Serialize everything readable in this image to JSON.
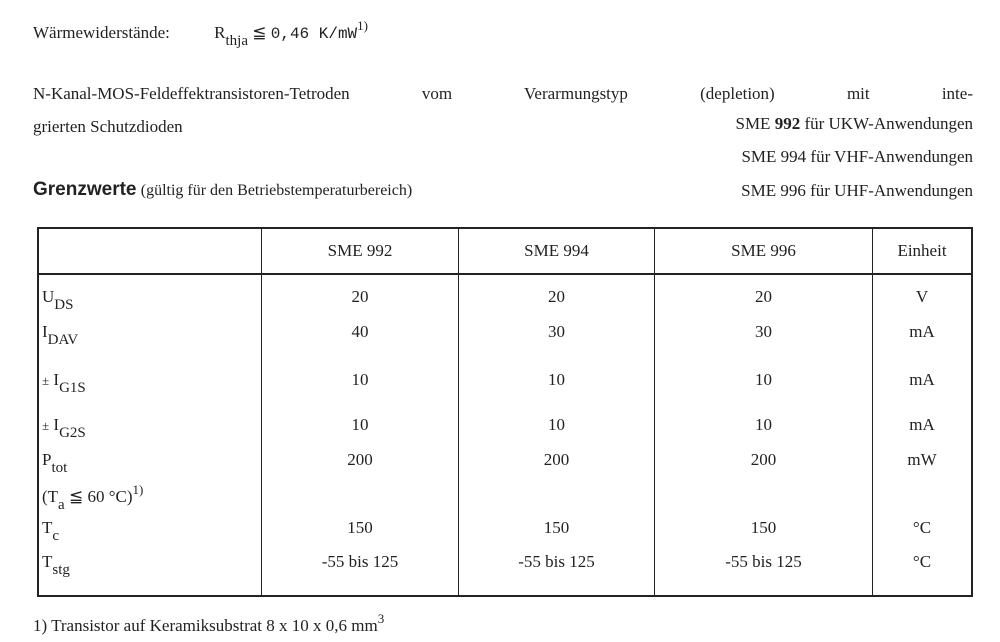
{
  "thermal": {
    "label": "Wärmewiderstände:",
    "symbol": "R",
    "symbol_sub": "thja",
    "relation": "≦",
    "value": "0,46 K/mW",
    "footnote_ref": "1)"
  },
  "intro": {
    "line1": "N-Kanal-MOS-Feldeffektransistoren-Tetroden vom Verarmungstyp (depletion) mit inte-",
    "line2": "grierten Schutzdioden"
  },
  "types": [
    {
      "name": "SME",
      "num": "992",
      "use": "für UKW-Anwendungen"
    },
    {
      "name": "SME",
      "num": "994",
      "use": "für VHF-Anwendungen"
    },
    {
      "name": "SME",
      "num": "996",
      "use": "für UHF-Anwendungen"
    }
  ],
  "section": {
    "title": "Grenzwerte",
    "subtitle": "(gültig für den Betriebstemperaturbereich)"
  },
  "table": {
    "headers": [
      "",
      "SME 992",
      "SME 994",
      "SME 996",
      "Einheit"
    ],
    "rows": [
      {
        "prefix": "",
        "sym": "U",
        "sub": "DS",
        "values": [
          "20",
          "20",
          "20"
        ],
        "unit": "V"
      },
      {
        "prefix": "",
        "sym": "I",
        "sub": "DAV",
        "values": [
          "40",
          "30",
          "30"
        ],
        "unit": "mA"
      },
      {
        "prefix": "±",
        "sym": "I",
        "sub": "G1S",
        "values": [
          "10",
          "10",
          "10"
        ],
        "unit": "mA"
      },
      {
        "prefix": "±",
        "sym": "I",
        "sub": "G2S",
        "values": [
          "10",
          "10",
          "10"
        ],
        "unit": "mA"
      },
      {
        "prefix": "",
        "sym": "P",
        "sub": "tot",
        "values": [
          "200",
          "200",
          "200"
        ],
        "unit": "mW",
        "condition": {
          "open": "(T",
          "sub": "a",
          "rel": "≦ 60 °C)",
          "ref": "1)"
        }
      },
      {
        "prefix": "",
        "sym": "T",
        "sub": "c",
        "values": [
          "150",
          "150",
          "150"
        ],
        "unit": "°C"
      },
      {
        "prefix": "",
        "sym": "T",
        "sub": "stg",
        "values": [
          "-55 bis 125",
          "-55 bis 125",
          "-55 bis 125"
        ],
        "unit": "°C"
      }
    ]
  },
  "footnote": {
    "text": "1) Transistor auf Keramiksubstrat 8 x 10 x 0,6 mm",
    "sup": "3"
  }
}
